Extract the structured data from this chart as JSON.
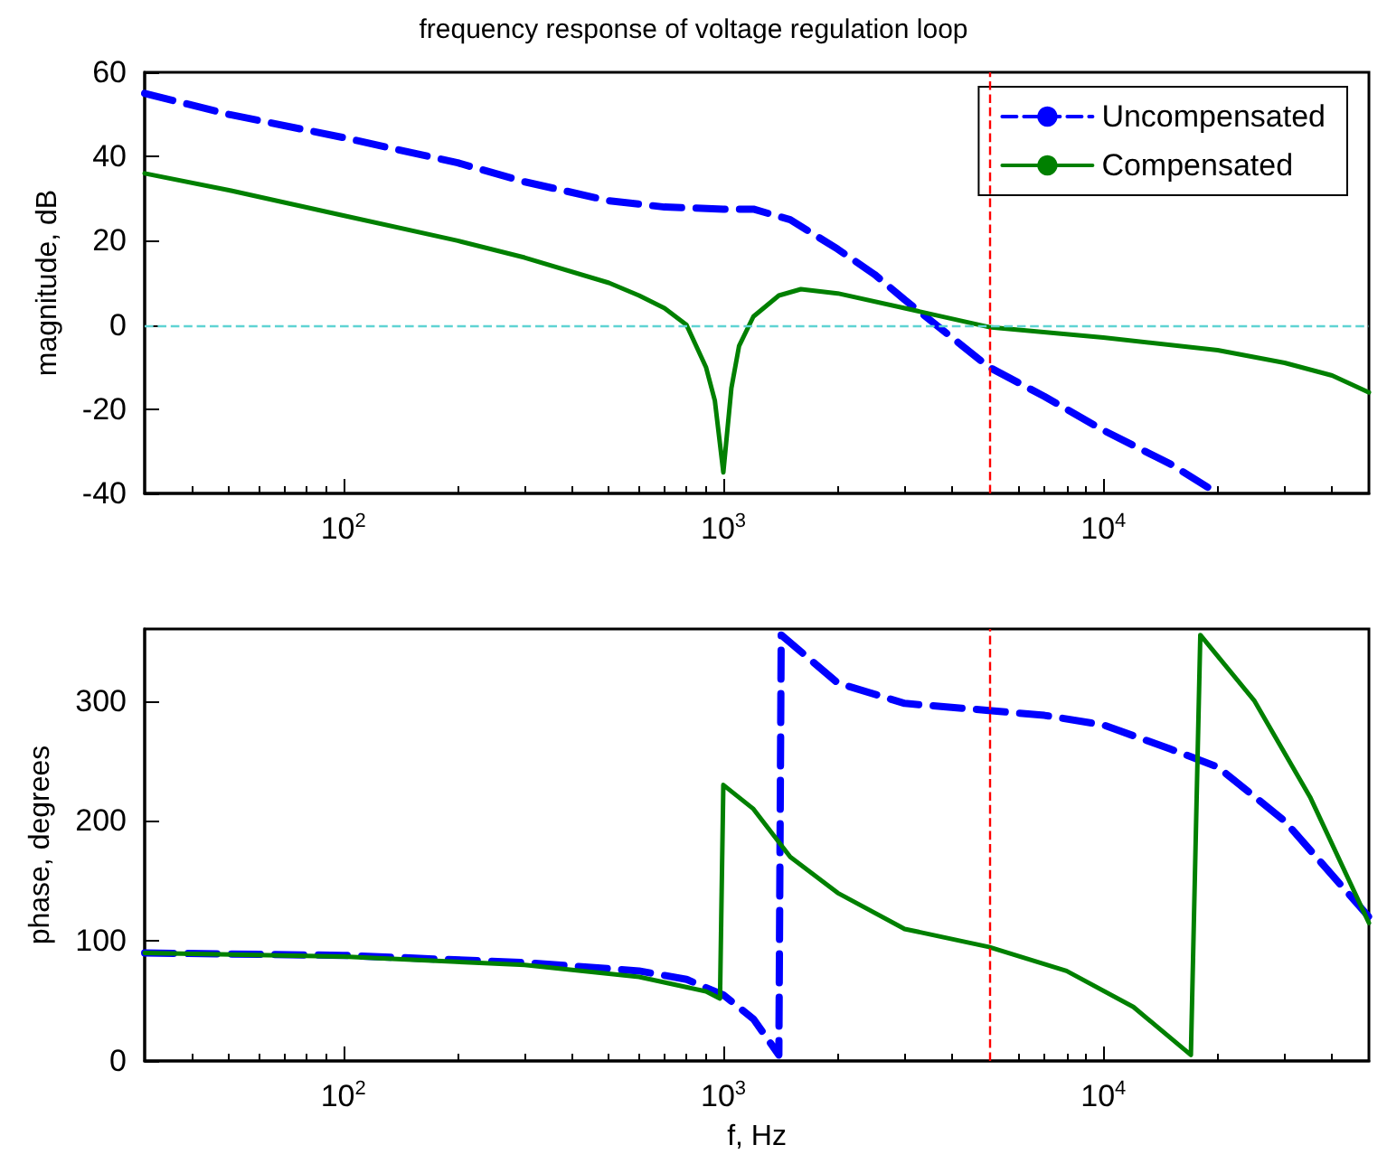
{
  "chart_data": [
    {
      "type": "line",
      "title": "frequency response of voltage regulation loop",
      "ylabel": "magnitude, dB",
      "xlim": [
        30,
        50000
      ],
      "ylim": [
        -40,
        60
      ],
      "log": "x",
      "xticks": [
        {
          "value": 100,
          "label": "10$^{2}$"
        },
        {
          "value": 1000,
          "label": "10$^{3}$"
        },
        {
          "value": 10000,
          "label": "10$^{4}$"
        }
      ],
      "yticks": [
        -40,
        -20,
        0,
        20,
        40,
        60
      ],
      "legend": "top right",
      "marker": "none",
      "grid": false,
      "ref_lines": [
        {
          "axis": "y",
          "value": 0,
          "color": "#5fd3d3",
          "line_style": "dashed"
        },
        {
          "axis": "x",
          "value": 5000,
          "color": "#ff0000",
          "line_style": "dashed"
        }
      ],
      "series": [
        {
          "name": "Uncompensated",
          "color": "#0000ff",
          "line_style": "dashed",
          "x": [
            30,
            50,
            100,
            200,
            300,
            500,
            700,
            1000,
            1200,
            1500,
            2000,
            2500,
            3000,
            4000,
            5000,
            7000,
            10000,
            15000,
            20000
          ],
          "values": [
            55,
            50,
            44.5,
            38.5,
            34,
            29.5,
            28,
            27.5,
            27.5,
            25,
            18,
            12,
            6,
            -3,
            -10,
            -17,
            -25,
            -33,
            -40
          ]
        },
        {
          "name": "Compensated",
          "color": "#008000",
          "line_style": "solid",
          "x": [
            30,
            50,
            100,
            200,
            300,
            500,
            600,
            700,
            800,
            900,
            950,
            1000,
            1050,
            1100,
            1200,
            1400,
            1600,
            2000,
            3000,
            5000,
            10000,
            20000,
            30000,
            40000,
            50000
          ],
          "values": [
            36,
            32,
            26,
            20,
            16,
            10,
            7,
            4,
            0,
            -10,
            -18,
            -35,
            -15,
            -5,
            2,
            7,
            8.5,
            7.5,
            4,
            -0.5,
            -3,
            -6,
            -9,
            -12,
            -16
          ]
        }
      ]
    },
    {
      "type": "line",
      "xlabel": "f, Hz",
      "ylabel": "phase, degrees",
      "xlim": [
        30,
        50000
      ],
      "ylim": [
        0,
        360
      ],
      "log": "x",
      "xticks": [
        {
          "value": 100,
          "label": "10$^{2}$"
        },
        {
          "value": 1000,
          "label": "10$^{3}$"
        },
        {
          "value": 10000,
          "label": "10$^{4}$"
        }
      ],
      "yticks": [
        0,
        100,
        200,
        300
      ],
      "marker": "none",
      "grid": false,
      "ref_lines": [
        {
          "axis": "x",
          "value": 5000,
          "color": "#ff0000",
          "line_style": "dashed"
        }
      ],
      "series": [
        {
          "color": "#0000ff",
          "line_style": "dashed",
          "x": [
            30,
            100,
            300,
            600,
            800,
            1000,
            1200,
            1400,
            1420,
            2000,
            3000,
            5000,
            7000,
            10000,
            15000,
            20000,
            30000,
            50000
          ],
          "values": [
            90,
            88,
            82,
            75,
            68,
            55,
            35,
            5,
            355,
            315,
            298,
            292,
            288,
            280,
            260,
            245,
            200,
            120
          ]
        },
        {
          "color": "#008000",
          "line_style": "solid",
          "x": [
            30,
            100,
            300,
            600,
            900,
            980,
            1000,
            1200,
            1500,
            2000,
            3000,
            5000,
            8000,
            12000,
            17000,
            18000,
            25000,
            35000,
            50000
          ],
          "values": [
            90,
            87,
            80,
            70,
            58,
            52,
            230,
            210,
            170,
            140,
            110,
            95,
            75,
            45,
            5,
            355,
            300,
            220,
            115
          ]
        }
      ]
    }
  ]
}
